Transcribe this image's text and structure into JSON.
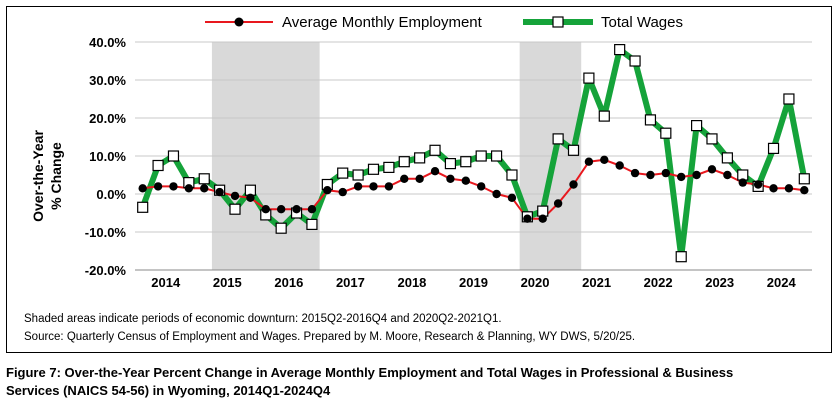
{
  "chart_data": {
    "type": "line",
    "ylabel_line1": "Over-the-Year",
    "ylabel_line2": "% Change",
    "ylim": [
      -20,
      40
    ],
    "yticks": [
      -20,
      -10,
      0,
      10,
      20,
      30,
      40
    ],
    "ytick_labels": [
      "-20.0%",
      "-10.0%",
      "0.0%",
      "10.0%",
      "20.0%",
      "30.0%",
      "40.0%"
    ],
    "year_labels": [
      "2014",
      "2015",
      "2016",
      "2017",
      "2018",
      "2019",
      "2020",
      "2021",
      "2022",
      "2023",
      "2024"
    ],
    "grid": true,
    "legend_position": "top",
    "shaded_periods": [
      {
        "start": "2015Q2",
        "end": "2016Q4"
      },
      {
        "start": "2020Q2",
        "end": "2021Q1"
      }
    ],
    "x": [
      "2014Q1",
      "2014Q2",
      "2014Q3",
      "2014Q4",
      "2015Q1",
      "2015Q2",
      "2015Q3",
      "2015Q4",
      "2016Q1",
      "2016Q2",
      "2016Q3",
      "2016Q4",
      "2017Q1",
      "2017Q2",
      "2017Q3",
      "2017Q4",
      "2018Q1",
      "2018Q2",
      "2018Q3",
      "2018Q4",
      "2019Q1",
      "2019Q2",
      "2019Q3",
      "2019Q4",
      "2020Q1",
      "2020Q2",
      "2020Q3",
      "2020Q4",
      "2021Q1",
      "2021Q2",
      "2021Q3",
      "2021Q4",
      "2022Q1",
      "2022Q2",
      "2022Q3",
      "2022Q4",
      "2023Q1",
      "2023Q2",
      "2023Q3",
      "2023Q4",
      "2024Q1",
      "2024Q2",
      "2024Q3",
      "2024Q4"
    ],
    "series": [
      {
        "name": "Average Monthly Employment",
        "color": "#e8181e",
        "marker": "black-circle",
        "values": [
          1.5,
          2.0,
          2.0,
          1.5,
          1.5,
          0.5,
          -0.5,
          -1.0,
          -4.0,
          -4.0,
          -4.0,
          -4.0,
          1.0,
          0.5,
          2.0,
          2.0,
          2.0,
          4.0,
          4.0,
          6.0,
          4.0,
          3.5,
          2.0,
          0.0,
          -1.0,
          -6.5,
          -6.5,
          -2.5,
          2.5,
          8.5,
          9.0,
          7.5,
          5.5,
          5.0,
          5.5,
          4.5,
          5.0,
          6.5,
          5.0,
          3.0,
          2.5,
          1.5,
          1.5,
          1.0
        ]
      },
      {
        "name": "Total Wages",
        "color": "#15a33a",
        "marker": "white-square",
        "values": [
          -3.5,
          7.5,
          10.0,
          3.0,
          4.0,
          1.0,
          -4.0,
          1.0,
          -5.5,
          -9.0,
          -5.0,
          -8.0,
          2.5,
          5.5,
          5.0,
          6.5,
          7.0,
          8.5,
          9.5,
          11.5,
          8.0,
          8.5,
          10.0,
          10.0,
          5.0,
          -6.0,
          -4.5,
          14.5,
          11.5,
          30.5,
          20.5,
          38.0,
          35.0,
          19.5,
          16.0,
          -16.5,
          18.0,
          14.5,
          9.5,
          5.0,
          2.0,
          12.0,
          25.0,
          4.0
        ]
      }
    ]
  },
  "notes": {
    "line1": "Shaded areas indicate periods of economic downturn: 2015Q2-2016Q4 and 2020Q2-2021Q1.",
    "line2": "Source: Quarterly Census of Employment and Wages. Prepared by M. Moore, Research & Planning, WY DWS, 5/20/25."
  },
  "caption": {
    "line1": "Figure 7: Over-the-Year Percent Change in Average Monthly Employment and Total Wages in Professional & Business",
    "line2": "Services (NAICS 54-56) in Wyoming, 2014Q1-2024Q4"
  }
}
